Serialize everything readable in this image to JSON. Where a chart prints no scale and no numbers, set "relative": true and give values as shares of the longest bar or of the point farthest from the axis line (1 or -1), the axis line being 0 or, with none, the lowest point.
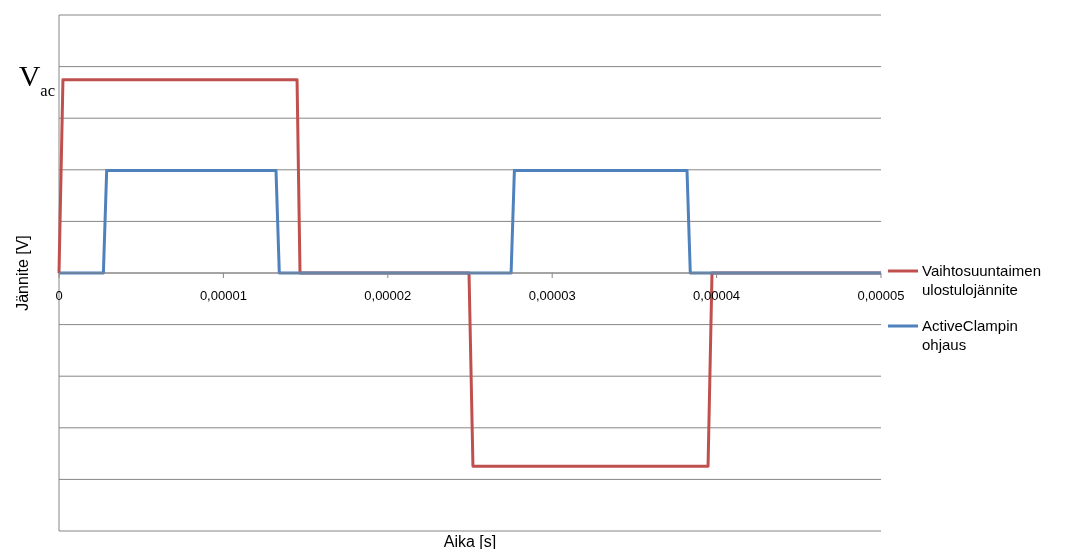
{
  "chart_data": {
    "type": "line",
    "relative": true,
    "xlabel": "Aika [s]",
    "ylabel": "Jännite [V]",
    "xlim": [
      0,
      5e-05
    ],
    "xticks": [
      0,
      {
        "value": 1e-05,
        "label": "0,00001"
      },
      {
        "value": 2e-05,
        "label": "0,00002"
      },
      {
        "value": 3e-05,
        "label": "0,00003"
      },
      {
        "value": 4e-05,
        "label": "0,00004"
      },
      {
        "value": 5e-05,
        "label": "0,00005"
      }
    ],
    "grid": true,
    "legend": "right",
    "line_style": "solid",
    "annotations": [
      {
        "text": "V$_{ac}$",
        "x": 0,
        "y": 1
      }
    ],
    "series": [
      {
        "name": "Vaihtosuuntaimen ulostulojännite",
        "color": "#c0504d",
        "x": [
          0,
          2.4e-07,
          1.448e-05,
          1.466e-05,
          2.494e-05,
          2.518e-05,
          3.948e-05,
          3.972e-05,
          5e-05
        ],
        "values": [
          0,
          1,
          1,
          0,
          0,
          -1,
          -1,
          0,
          0
        ]
      },
      {
        "name": "ActiveClampin ohjaus",
        "color": "#4f81bd",
        "x": [
          0,
          2.7e-06,
          2.9e-06,
          1.32e-05,
          1.34e-05,
          2.75e-05,
          2.77e-05,
          3.82e-05,
          3.84e-05,
          5e-05
        ],
        "values": [
          0,
          0,
          0.53,
          0.53,
          0,
          0,
          0.53,
          0.53,
          0,
          0
        ]
      }
    ]
  }
}
